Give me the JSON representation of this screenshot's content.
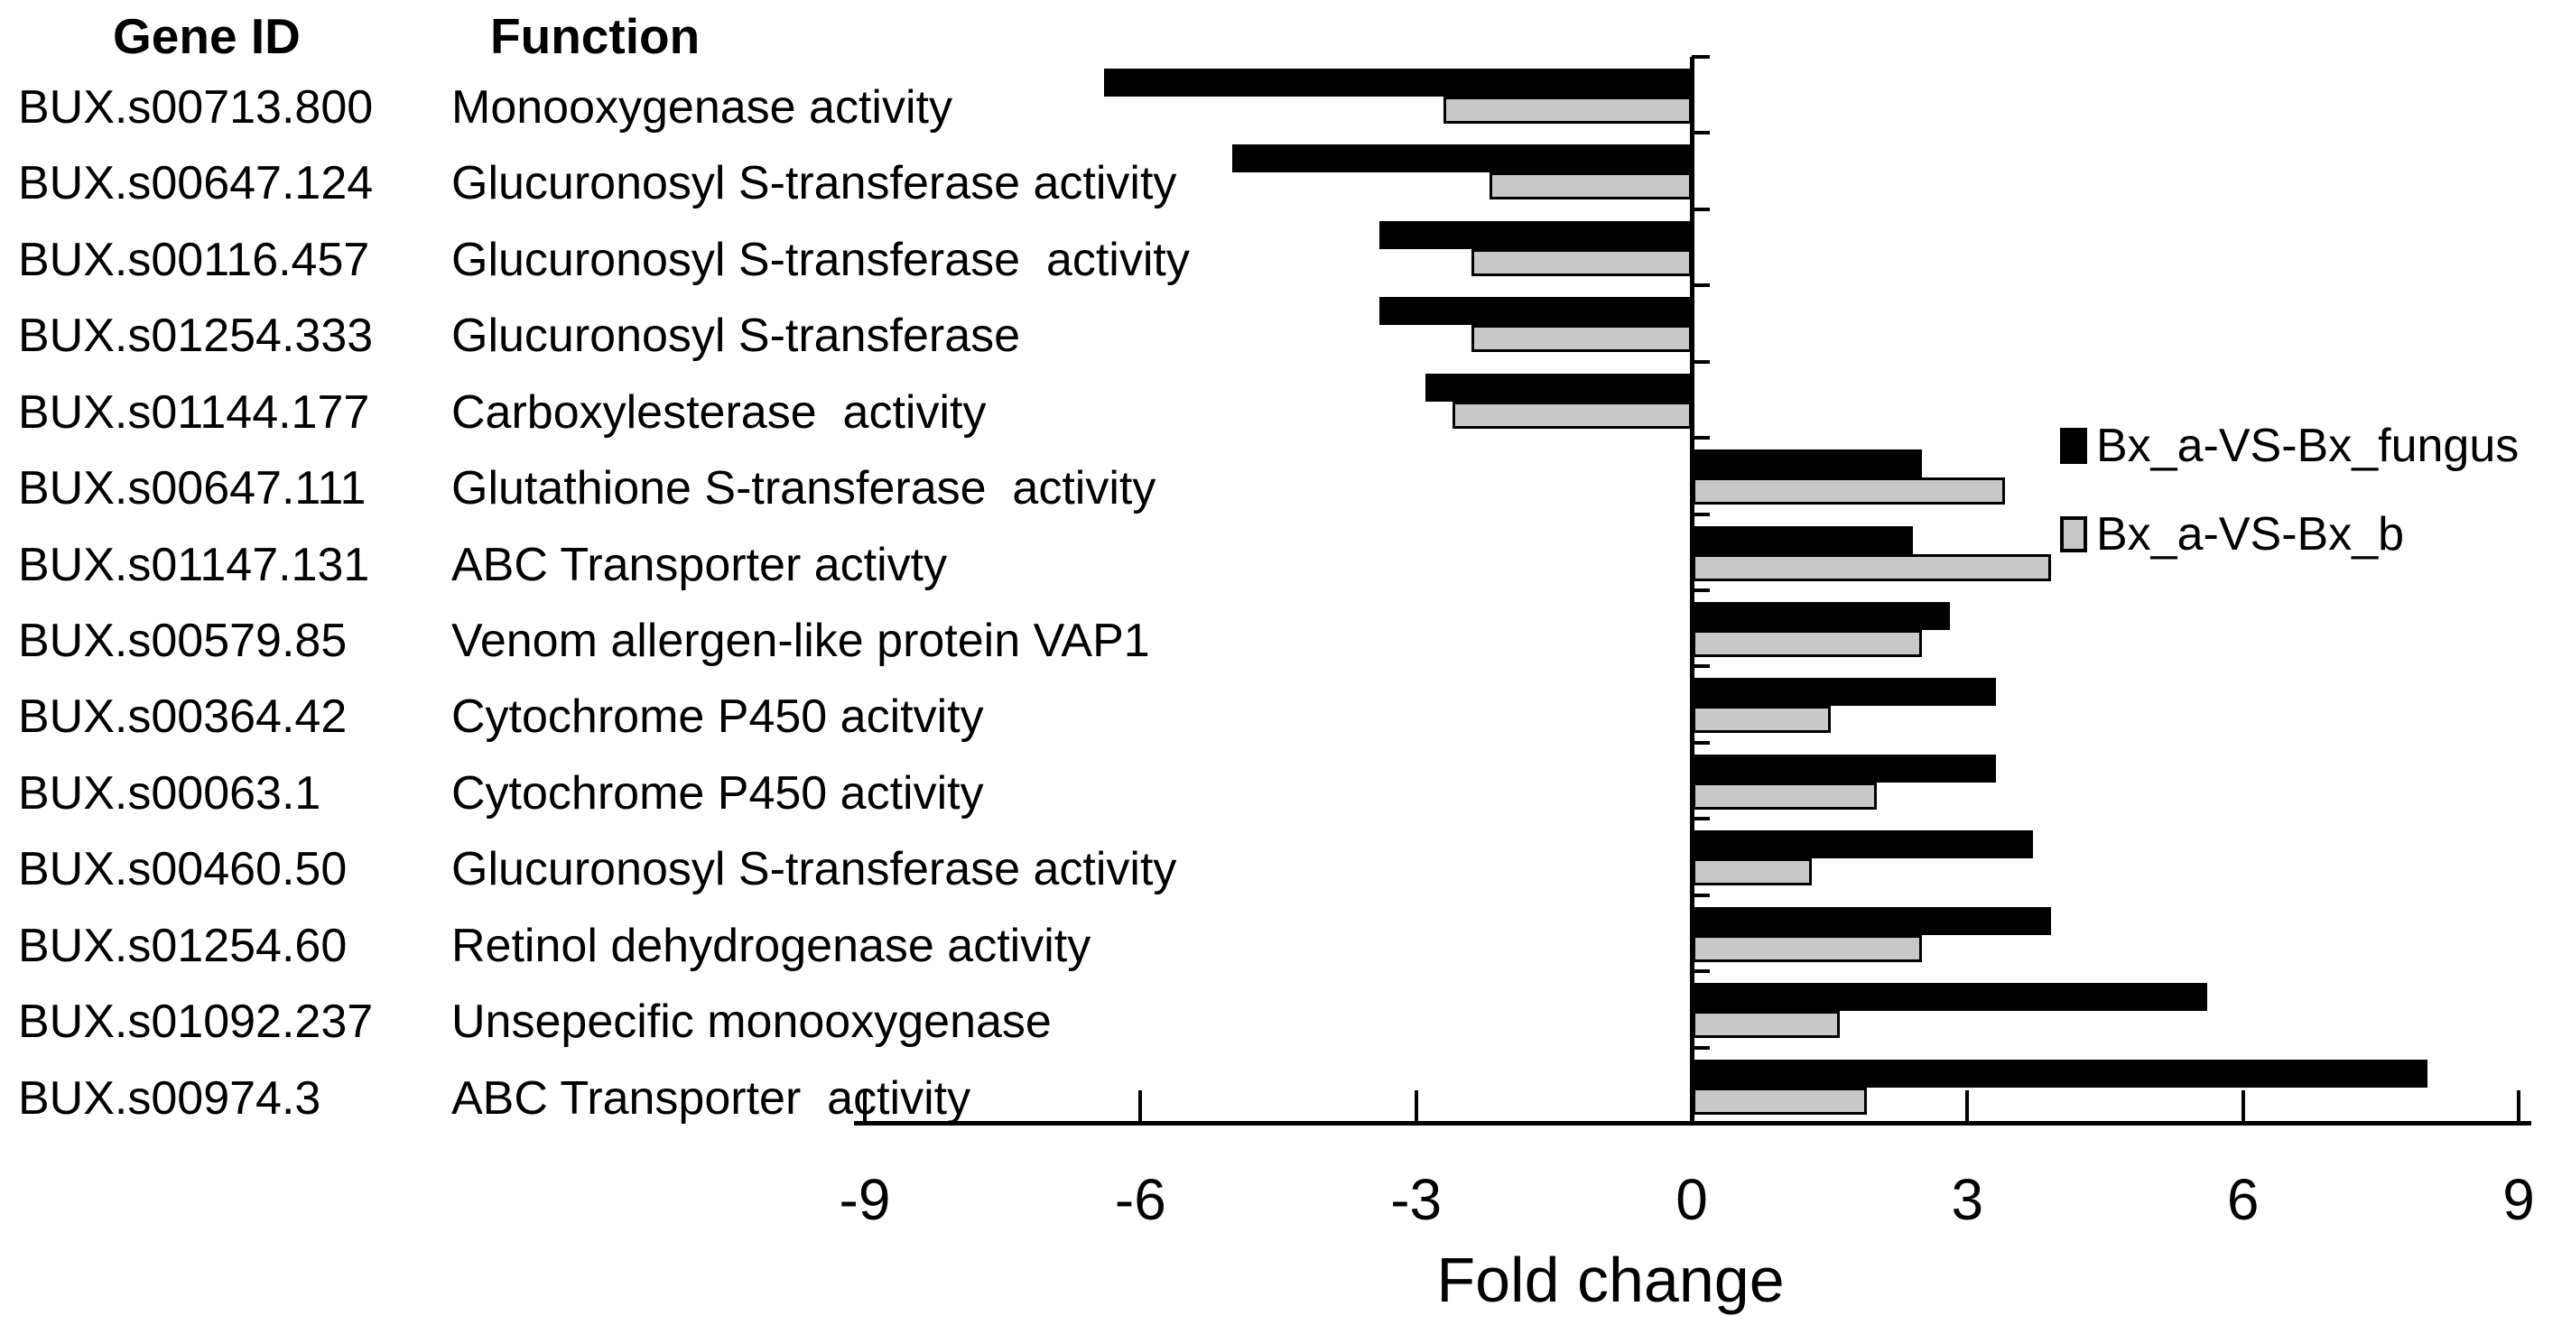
{
  "table": {
    "headers": {
      "gene_id": "Gene ID",
      "function": "Function"
    },
    "rows": [
      {
        "gene_id": "BUX.s00713.800",
        "function": "Monooxygenase activity"
      },
      {
        "gene_id": "BUX.s00647.124",
        "function": "Glucuronosyl S-transferase activity"
      },
      {
        "gene_id": "BUX.s00116.457",
        "function": "Glucuronosyl S-transferase  activity"
      },
      {
        "gene_id": "BUX.s01254.333",
        "function": "Glucuronosyl S-transferase"
      },
      {
        "gene_id": "BUX.s01144.177",
        "function": "Carboxylesterase  activity"
      },
      {
        "gene_id": "BUX.s00647.111",
        "function": "Glutathione S-transferase  activity"
      },
      {
        "gene_id": "BUX.s01147.131",
        "function": "ABC Transporter activty"
      },
      {
        "gene_id": "BUX.s00579.85",
        "function": "Venom allergen-like protein VAP1"
      },
      {
        "gene_id": "BUX.s00364.42",
        "function": "Cytochrome P450 acitvity"
      },
      {
        "gene_id": "BUX.s00063.1",
        "function": "Cytochrome P450 activity"
      },
      {
        "gene_id": "BUX.s00460.50",
        "function": "Glucuronosyl S-transferase activity"
      },
      {
        "gene_id": "BUX.s01254.60",
        "function": "Retinol dehydrogenase activity"
      },
      {
        "gene_id": "BUX.s01092.237",
        "function": "Unsepecific monooxygenase"
      },
      {
        "gene_id": "BUX.s00974.3",
        "function": "ABC Transporter  activity"
      }
    ]
  },
  "chart_data": {
    "type": "bar",
    "orientation": "horizontal",
    "title": "",
    "xlabel": "Fold change",
    "ylabel": "",
    "xlim": [
      -9,
      9
    ],
    "xticks": [
      -9,
      -6,
      -3,
      0,
      3,
      6,
      9
    ],
    "grid": false,
    "legend_position": "right-inside",
    "categories": [
      "BUX.s00713.800",
      "BUX.s00647.124",
      "BUX.s00116.457",
      "BUX.s01254.333",
      "BUX.s01144.177",
      "BUX.s00647.111",
      "BUX.s01147.131",
      "BUX.s00579.85",
      "BUX.s00364.42",
      "BUX.s00063.1",
      "BUX.s00460.50",
      "BUX.s01254.60",
      "BUX.s01092.237",
      "BUX.s00974.3"
    ],
    "series": [
      {
        "name": "Bx_a-VS-Bx_fungus",
        "color": "#000000",
        "values": [
          -6.4,
          -5.0,
          -3.4,
          -3.4,
          -2.9,
          2.5,
          2.4,
          2.8,
          3.3,
          3.3,
          3.7,
          3.9,
          5.6,
          8.0
        ]
      },
      {
        "name": "Bx_a-VS-Bx_b",
        "color": "#c8c8c8",
        "values": [
          -2.7,
          -2.2,
          -2.4,
          -2.4,
          -2.6,
          3.4,
          3.9,
          2.5,
          1.5,
          2.0,
          1.3,
          2.5,
          1.6,
          1.9
        ]
      }
    ]
  }
}
